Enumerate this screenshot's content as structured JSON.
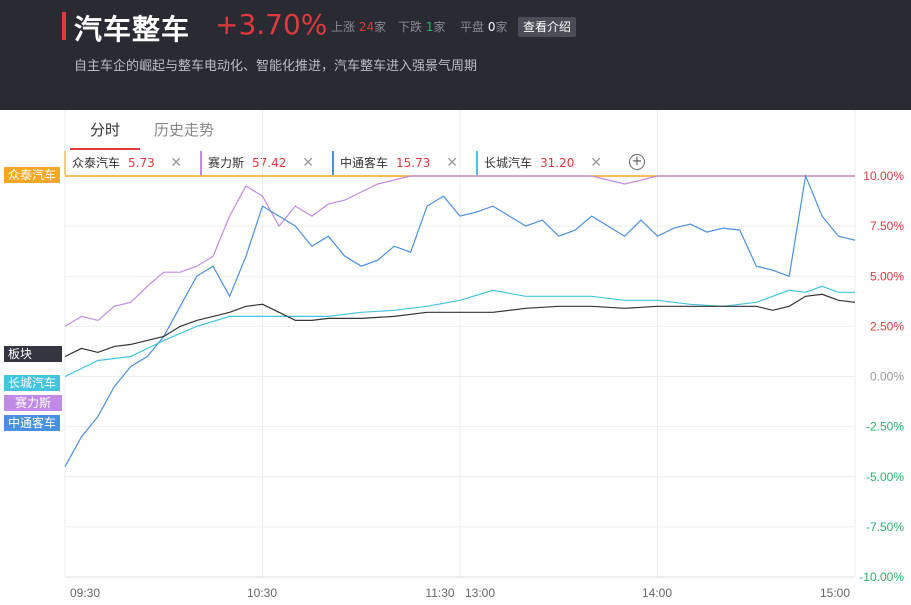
{
  "header": {
    "title": "汽车整车",
    "change": "+3.70%",
    "rise_label": "上涨",
    "rise_count": "24",
    "rise_unit": "家",
    "fall_label": "下跌",
    "fall_count": "1",
    "fall_unit": "家",
    "flat_label": "平盘",
    "flat_count": "0",
    "flat_unit": "家",
    "view_intro": "查看介绍",
    "subtitle": "自主车企的崛起与整车电动化、智能化推进，汽车整车进入强景气周期"
  },
  "tabs": [
    {
      "label": "分时"
    },
    {
      "label": "历史走势"
    }
  ],
  "stocks": [
    {
      "name": "众泰汽车",
      "value": "5.73",
      "color": "#f5a623"
    },
    {
      "name": "赛力斯",
      "value": "57.42",
      "color": "#c18ae6"
    },
    {
      "name": "中通客车",
      "value": "15.73",
      "color": "#4a90e2"
    },
    {
      "name": "长城汽车",
      "value": "31.20",
      "color": "#45c4e0"
    }
  ],
  "series_labels": {
    "zhongtai": "众泰汽车",
    "bankuai": "板块",
    "changcheng": "长城汽车",
    "sailisi": "赛力斯",
    "zhongtong": "中通客车"
  },
  "chart_data": {
    "type": "line",
    "x_ticks": [
      "09:30",
      "10:30",
      "11:30",
      "13:00",
      "14:00",
      "15:00"
    ],
    "y_ticks": [
      "10.00%",
      "7.50%",
      "5.00%",
      "2.50%",
      "0.00%",
      "-2.50%",
      "-5.00%",
      "-7.50%",
      "-10.00%"
    ],
    "ylim": [
      -10,
      10
    ],
    "x_unit": "minutes of trading session (0-240)",
    "series": [
      {
        "name": "众泰汽车",
        "color": "#f5a623",
        "x": [
          0,
          240
        ],
        "values": [
          10.0,
          10.0
        ]
      },
      {
        "name": "赛力斯",
        "color": "#c18ae6",
        "x": [
          0,
          5,
          10,
          15,
          20,
          25,
          30,
          35,
          40,
          45,
          50,
          55,
          60,
          65,
          70,
          75,
          80,
          85,
          90,
          95,
          100,
          105,
          110,
          115,
          120,
          125,
          130,
          140,
          150,
          160,
          170,
          180,
          190,
          200,
          210,
          220,
          230,
          240
        ],
        "values": [
          2.5,
          3.0,
          2.8,
          3.5,
          3.7,
          4.5,
          5.2,
          5.2,
          5.5,
          6.0,
          8.0,
          9.5,
          9.0,
          7.5,
          8.5,
          8.0,
          8.6,
          8.8,
          9.2,
          9.6,
          9.8,
          10.0,
          10.0,
          10.0,
          10.0,
          10.0,
          10.0,
          10.0,
          10.0,
          10.0,
          9.6,
          10.0,
          10.0,
          10.0,
          10.0,
          10.0,
          10.0,
          10.0
        ]
      },
      {
        "name": "中通客车",
        "color": "#4a90e2",
        "x": [
          0,
          5,
          10,
          15,
          20,
          25,
          30,
          35,
          40,
          45,
          50,
          55,
          60,
          65,
          70,
          75,
          80,
          85,
          90,
          95,
          100,
          105,
          110,
          115,
          120,
          125,
          130,
          135,
          140,
          145,
          150,
          155,
          160,
          165,
          170,
          175,
          180,
          185,
          190,
          195,
          200,
          205,
          210,
          215,
          220,
          225,
          230,
          235,
          240
        ],
        "values": [
          -4.5,
          -3.0,
          -2.0,
          -0.5,
          0.5,
          1.0,
          2.0,
          3.5,
          5.0,
          5.5,
          4.0,
          6.0,
          8.5,
          8.0,
          7.5,
          6.5,
          7.0,
          6.0,
          5.5,
          5.8,
          6.5,
          6.2,
          8.5,
          9.0,
          8.0,
          8.2,
          8.5,
          8.0,
          7.5,
          7.8,
          7.0,
          7.3,
          8.0,
          7.5,
          7.0,
          7.8,
          7.0,
          7.4,
          7.6,
          7.2,
          7.4,
          7.3,
          5.5,
          5.3,
          5.0,
          10.0,
          8.0,
          7.0,
          6.8
        ]
      },
      {
        "name": "长城汽车",
        "color": "#45c4e0",
        "x": [
          0,
          10,
          20,
          30,
          40,
          50,
          60,
          70,
          80,
          90,
          100,
          110,
          120,
          130,
          140,
          150,
          160,
          170,
          180,
          190,
          200,
          210,
          215,
          220,
          225,
          230,
          235,
          240
        ],
        "values": [
          0.0,
          0.8,
          1.0,
          1.8,
          2.5,
          3.0,
          3.0,
          3.0,
          3.0,
          3.2,
          3.3,
          3.5,
          3.8,
          4.3,
          4.0,
          4.0,
          4.0,
          3.8,
          3.8,
          3.6,
          3.5,
          3.7,
          4.0,
          4.3,
          4.2,
          4.5,
          4.2,
          4.2
        ]
      },
      {
        "name": "板块",
        "color": "#333333",
        "x": [
          0,
          5,
          10,
          15,
          20,
          25,
          30,
          35,
          40,
          45,
          50,
          55,
          60,
          65,
          70,
          75,
          80,
          90,
          100,
          110,
          120,
          130,
          140,
          150,
          160,
          170,
          180,
          190,
          200,
          210,
          215,
          220,
          225,
          230,
          235,
          240
        ],
        "values": [
          1.0,
          1.4,
          1.2,
          1.5,
          1.6,
          1.8,
          2.0,
          2.5,
          2.8,
          3.0,
          3.2,
          3.5,
          3.6,
          3.2,
          2.8,
          2.8,
          2.9,
          2.9,
          3.0,
          3.2,
          3.2,
          3.2,
          3.4,
          3.5,
          3.5,
          3.4,
          3.5,
          3.5,
          3.5,
          3.5,
          3.3,
          3.5,
          4.0,
          4.1,
          3.8,
          3.7
        ]
      }
    ]
  }
}
